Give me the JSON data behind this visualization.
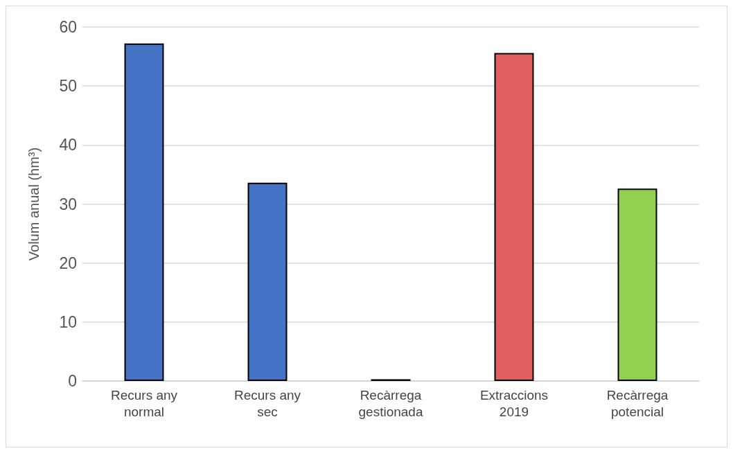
{
  "chart_data": {
    "type": "bar",
    "ylabel": "Volum anual (hm³)",
    "categories": [
      "Recurs any\nnormal",
      "Recurs any\nsec",
      "Recàrrega\ngestionada",
      "Extraccions\n2019",
      "Recàrrega\npotencial"
    ],
    "values": [
      57.2,
      33.6,
      0.3,
      55.6,
      32.6
    ],
    "colors": [
      "#4472c4",
      "#4472c4",
      "#4472c4",
      "#e06060",
      "#92d050"
    ],
    "ylim": [
      0,
      60
    ],
    "yticks": [
      0,
      10,
      20,
      30,
      40,
      50,
      60
    ],
    "grid": "y"
  }
}
